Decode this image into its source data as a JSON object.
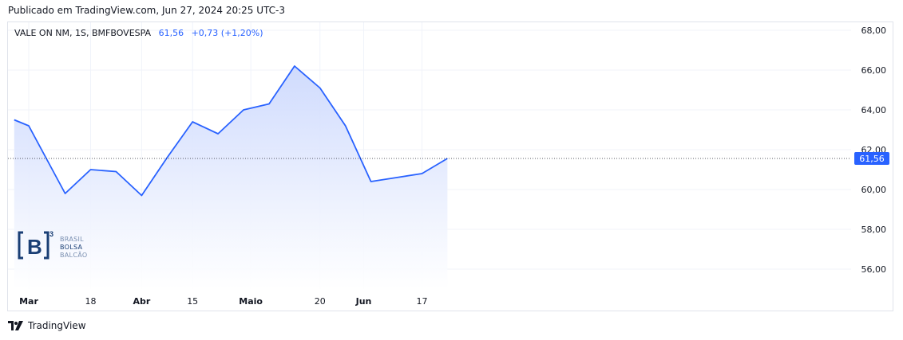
{
  "header": {
    "published": "Publicado em TradingView.com, Jun 27, 2024 20:25 UTC-3"
  },
  "legend": {
    "symbol": "VALE ON NM, 1S, BMFBOVESPA",
    "last": "61,56",
    "change": "+0,73 (+1,20%)"
  },
  "watermark": {
    "logo": "[B]³",
    "line1": "BRASIL",
    "line2": "BOLSA",
    "line3": "BALCÃO"
  },
  "footer": {
    "brand": "TradingView"
  },
  "colors": {
    "line": "#2962ff",
    "fill_top": "#cdd9fd",
    "fill_bottom": "#ffffff",
    "grid": "#f0f3fa",
    "label_bg": "#2962ff"
  },
  "chart_data": {
    "type": "area",
    "title": "",
    "xlabel": "",
    "ylabel": "",
    "ylim": [
      55,
      68.4
    ],
    "grid": true,
    "y_ticks": [
      "56,00",
      "58,00",
      "60,00",
      "62,00",
      "64,00",
      "66,00",
      "68,00"
    ],
    "x_ticks": [
      {
        "label": "Mar",
        "date": "2024-03-01",
        "bold": true
      },
      {
        "label": "18",
        "date": "2024-03-18",
        "bold": false
      },
      {
        "label": "Abr",
        "date": "2024-04-01",
        "bold": true
      },
      {
        "label": "15",
        "date": "2024-04-15",
        "bold": false
      },
      {
        "label": "Maio",
        "date": "2024-05-01",
        "bold": true
      },
      {
        "label": "20",
        "date": "2024-05-20",
        "bold": false
      },
      {
        "label": "Jun",
        "date": "2024-06-01",
        "bold": true
      },
      {
        "label": "17",
        "date": "2024-06-17",
        "bold": false
      }
    ],
    "series": [
      {
        "points": [
          {
            "x": "2024-02-26",
            "y": 63.5
          },
          {
            "x": "2024-03-01",
            "y": 63.2
          },
          {
            "x": "2024-03-11",
            "y": 59.8
          },
          {
            "x": "2024-03-18",
            "y": 61.0
          },
          {
            "x": "2024-03-25",
            "y": 60.9
          },
          {
            "x": "2024-04-01",
            "y": 59.7
          },
          {
            "x": "2024-04-08",
            "y": 61.6
          },
          {
            "x": "2024-04-15",
            "y": 63.4
          },
          {
            "x": "2024-04-22",
            "y": 62.8
          },
          {
            "x": "2024-04-29",
            "y": 64.0
          },
          {
            "x": "2024-05-06",
            "y": 64.3
          },
          {
            "x": "2024-05-13",
            "y": 66.2
          },
          {
            "x": "2024-05-20",
            "y": 65.1
          },
          {
            "x": "2024-05-27",
            "y": 63.2
          },
          {
            "x": "2024-06-03",
            "y": 60.4
          },
          {
            "x": "2024-06-10",
            "y": 60.6
          },
          {
            "x": "2024-06-17",
            "y": 60.8
          },
          {
            "x": "2024-06-24",
            "y": 61.56
          }
        ]
      }
    ],
    "last_value_label": "61,56"
  }
}
